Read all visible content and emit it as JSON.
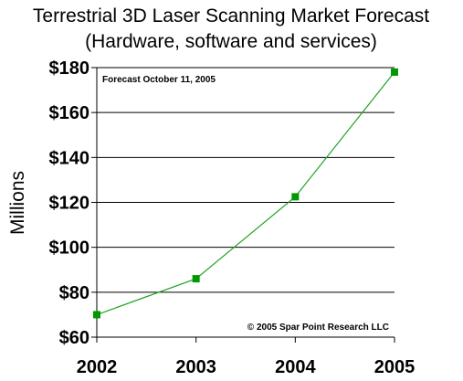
{
  "chart_data": {
    "type": "line",
    "title": "Terrestrial 3D Laser Scanning Market Forecast",
    "subtitle": "(Hardware, software and services)",
    "ylabel": "Millions",
    "xlabel": "",
    "categories": [
      "2002",
      "2003",
      "2004",
      "2005"
    ],
    "series": [
      {
        "values": [
          70,
          86,
          122.5,
          178
        ]
      }
    ],
    "ylim": [
      60,
      180
    ],
    "yticks": [
      60,
      80,
      100,
      120,
      140,
      160,
      180
    ],
    "ytick_labels": [
      "$60",
      "$80",
      "$100",
      "$120",
      "$140",
      "$160",
      "$180"
    ],
    "grid": true,
    "annotations": {
      "forecast_note": "Forecast October 11, 2005",
      "copyright": "© 2005 Spar Point Research LLC"
    },
    "colors": {
      "line": "#22a022",
      "marker": "#009900",
      "grid": "#000000"
    }
  }
}
